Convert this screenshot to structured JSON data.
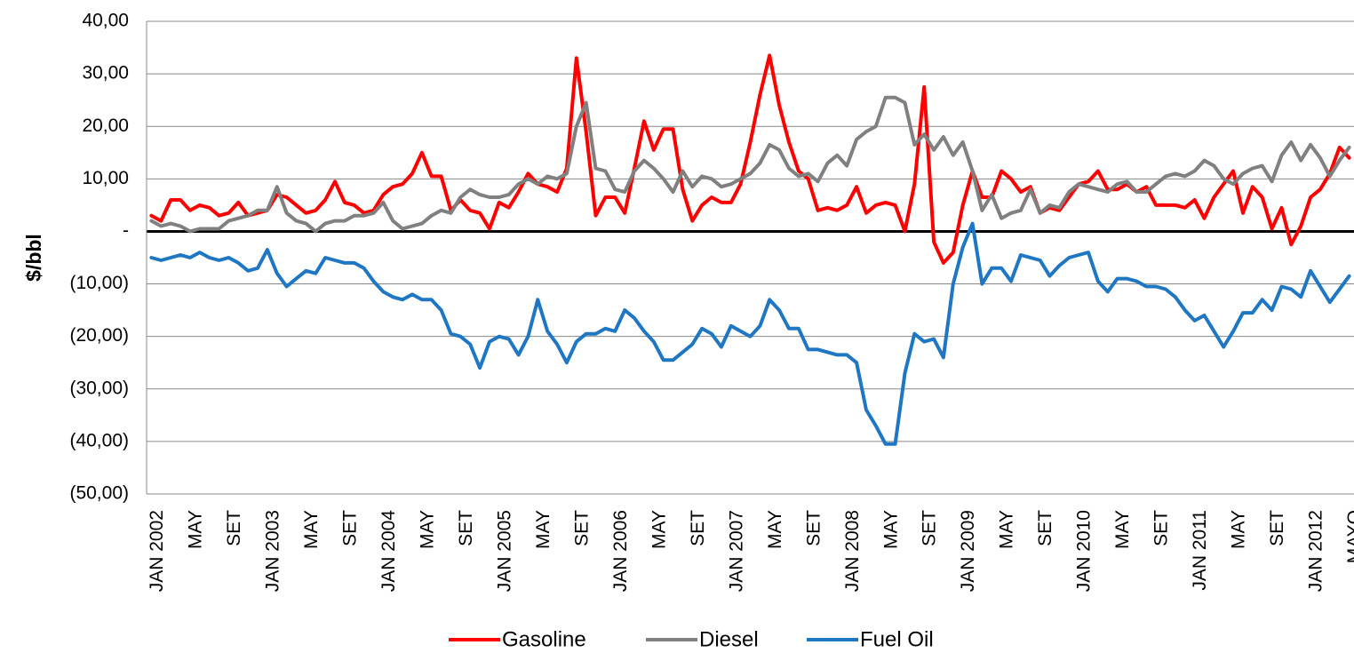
{
  "chart_data": {
    "type": "line",
    "y_label": "$/bbl",
    "categories": [
      "JAN 2002",
      null,
      null,
      null,
      "MAY",
      null,
      null,
      null,
      "SET",
      null,
      null,
      null,
      "JAN 2003",
      null,
      null,
      null,
      "MAY",
      null,
      null,
      null,
      "SET",
      null,
      null,
      null,
      "JAN 2004",
      null,
      null,
      null,
      "MAY",
      null,
      null,
      null,
      "SET",
      null,
      null,
      null,
      "JAN 2005",
      null,
      null,
      null,
      "MAY",
      null,
      null,
      null,
      "SET",
      null,
      null,
      null,
      "JAN 2006",
      null,
      null,
      null,
      "MAY",
      null,
      null,
      null,
      "SET",
      null,
      null,
      null,
      "JAN 2007",
      null,
      null,
      null,
      "MAY",
      null,
      null,
      null,
      "SET",
      null,
      null,
      null,
      "JAN 2008",
      null,
      null,
      null,
      "MAY",
      null,
      null,
      null,
      "SET",
      null,
      null,
      null,
      "JAN 2009",
      null,
      null,
      null,
      "MAY",
      null,
      null,
      null,
      "SET",
      null,
      null,
      null,
      "JAN 2010",
      null,
      null,
      null,
      "MAY",
      null,
      null,
      null,
      "SET",
      null,
      null,
      null,
      "JAN 2011",
      null,
      null,
      null,
      "MAY",
      null,
      null,
      null,
      "SET",
      null,
      null,
      null,
      "JAN 2012",
      null,
      null,
      null,
      "MAYO"
    ],
    "series": [
      {
        "name": "Gasoline",
        "color": "#ff0000",
        "values": [
          3,
          2,
          6,
          6,
          4,
          5,
          4.5,
          3,
          3.5,
          5.5,
          3,
          3.5,
          4,
          7,
          6.5,
          5,
          3.5,
          4,
          6,
          9.5,
          5.5,
          5,
          3.5,
          4,
          7,
          8.5,
          9,
          11,
          15,
          10.5,
          10.5,
          4,
          6,
          4,
          3.5,
          0.5,
          5.5,
          4.5,
          7.5,
          11,
          9,
          8.5,
          7.5,
          12,
          33,
          19,
          3,
          6.5,
          6.5,
          3.5,
          12,
          21,
          15.5,
          19.5,
          19.5,
          8,
          2,
          5,
          6.5,
          5.5,
          5.5,
          9,
          17,
          26,
          33.5,
          24,
          17,
          11.5,
          10,
          4,
          4.5,
          4,
          5,
          8.5,
          3.5,
          5,
          5.5,
          5,
          0,
          9,
          27.5,
          -2,
          -6,
          -4,
          5,
          11.5,
          6.5,
          6.5,
          11.5,
          10,
          7.5,
          8.5,
          3.5,
          4.5,
          4,
          6.5,
          9,
          9.5,
          11.5,
          8,
          8,
          9,
          7.5,
          8.5,
          5,
          5,
          5,
          4.5,
          6,
          2.5,
          6.5,
          9,
          11.5,
          3.5,
          8.5,
          6.5,
          0.5,
          4.5,
          -2.5,
          1,
          6.5,
          8,
          11,
          16,
          14
        ]
      },
      {
        "name": "Diesel",
        "color": "#808080",
        "values": [
          2,
          1,
          1.5,
          1,
          0,
          0.5,
          0.5,
          0.5,
          2,
          2.5,
          3,
          4,
          4,
          8.5,
          3.5,
          2,
          1.5,
          0,
          1.5,
          2,
          2,
          3,
          3,
          3.5,
          5.5,
          2,
          0.5,
          1,
          1.5,
          3,
          4,
          3.5,
          6.5,
          8,
          7,
          6.5,
          6.5,
          7,
          9,
          10,
          9,
          10.5,
          10,
          11,
          20,
          24.5,
          12,
          11.5,
          8,
          7.5,
          11.5,
          13.5,
          12,
          10,
          7.5,
          11.5,
          8.5,
          10.5,
          10,
          8.5,
          9,
          10,
          11,
          13,
          16.5,
          15.5,
          12,
          10.5,
          11,
          9.5,
          13,
          14.5,
          12.5,
          17.5,
          19,
          20,
          25.5,
          25.5,
          24.5,
          16.5,
          18.5,
          15.5,
          18,
          14.5,
          17,
          11.5,
          4,
          7,
          2.5,
          3.5,
          4,
          8,
          3.5,
          5,
          4.5,
          7.5,
          9,
          8.5,
          8,
          7.5,
          9,
          9.5,
          7.5,
          7.5,
          9,
          10.5,
          11,
          10.5,
          11.5,
          13.5,
          12.5,
          10,
          9,
          11,
          12,
          12.5,
          9.5,
          14.5,
          17,
          13.5,
          16.5,
          14,
          10.5,
          13.5,
          16
        ]
      },
      {
        "name": "Fuel Oil",
        "color": "#1f77c4",
        "values": [
          -5,
          -5.5,
          -5,
          -4.5,
          -5,
          -4,
          -5,
          -5.5,
          -5,
          -6,
          -7.5,
          -7,
          -3.5,
          -8,
          -10.5,
          -9,
          -7.5,
          -8,
          -5,
          -5.5,
          -6,
          -6,
          -7,
          -9.5,
          -11.5,
          -12.5,
          -13,
          -12,
          -13,
          -13,
          -15,
          -19.5,
          -20,
          -21.5,
          -26,
          -21,
          -20,
          -20.5,
          -23.5,
          -20,
          -13,
          -19,
          -21.5,
          -25,
          -21,
          -19.5,
          -19.5,
          -18.5,
          -19,
          -15,
          -16.5,
          -19,
          -21,
          -24.5,
          -24.5,
          -23,
          -21.5,
          -18.5,
          -19.5,
          -22,
          -18,
          -19,
          -20,
          -18,
          -13,
          -15,
          -18.5,
          -18.5,
          -22.5,
          -22.5,
          -23,
          -23.5,
          -23.5,
          -25,
          -34,
          -37,
          -40.5,
          -40.5,
          -27,
          -19.5,
          -21,
          -20.5,
          -24,
          -10,
          -3,
          1.5,
          -10,
          -7,
          -7,
          -9.5,
          -4.5,
          -5,
          -5.5,
          -8.5,
          -6.5,
          -5,
          -4.5,
          -4,
          -9.5,
          -11.5,
          -9,
          -9,
          -9.5,
          -10.5,
          -10.5,
          -11,
          -12.5,
          -15,
          -17,
          -16,
          -19,
          -22,
          -19,
          -15.5,
          -15.5,
          -13,
          -15,
          -10.5,
          -11,
          -12.5,
          -7.5,
          -10.5,
          -13.5,
          -11,
          -8.5
        ]
      }
    ],
    "ylim": [
      -50,
      40
    ],
    "yticks": [
      {
        "value": -50,
        "label": "(50,00)"
      },
      {
        "value": -40,
        "label": "(40,00)"
      },
      {
        "value": -30,
        "label": "(30,00)"
      },
      {
        "value": -20,
        "label": "(20,00)"
      },
      {
        "value": -10,
        "label": "(10,00)"
      },
      {
        "value": 0,
        "label": "-"
      },
      {
        "value": 10,
        "label": "10,00"
      },
      {
        "value": 20,
        "label": "20,00"
      },
      {
        "value": 30,
        "label": "30,00"
      },
      {
        "value": 40,
        "label": "40,00"
      }
    ],
    "grid": true,
    "legend": "bottom"
  }
}
